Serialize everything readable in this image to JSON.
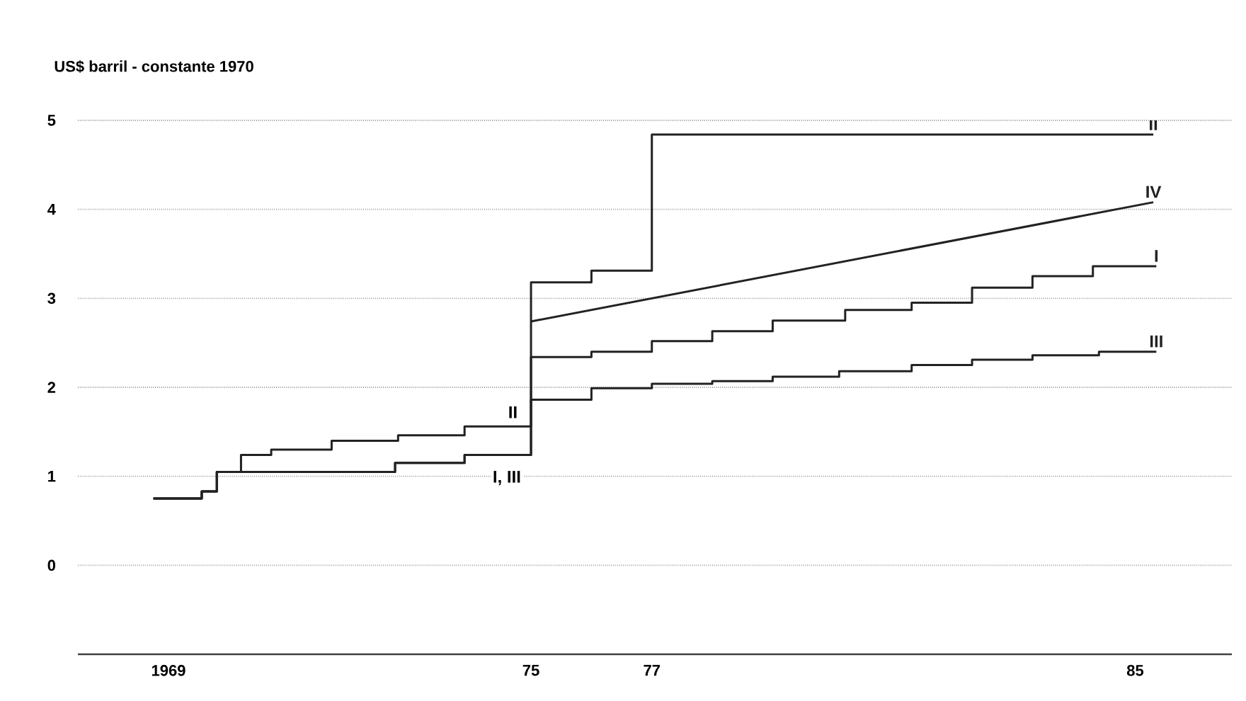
{
  "chart_data": {
    "type": "step",
    "ylabel": "US$ barril - constante 1970",
    "xlim": [
      1967.5,
      1986.6
    ],
    "ylim": [
      -1,
      5
    ],
    "xticks": [
      1969,
      {
        "value": 1975,
        "label": "75"
      },
      {
        "value": 1977,
        "label": "77"
      },
      {
        "value": 1985,
        "label": "85"
      }
    ],
    "yticks": [
      0,
      1,
      2,
      3,
      4,
      5
    ],
    "grid": "y",
    "legend": false,
    "marker": "none",
    "line_style": "solid",
    "series": [
      {
        "name": "II",
        "color": "#222222",
        "x": [
          1968.75,
          1969.55,
          1969.8,
          1970.2,
          1970.7,
          1971.7,
          1972.8,
          1973.9,
          1975,
          1976,
          1977,
          1985.3
        ],
        "values": [
          0.75,
          0.83,
          1.05,
          1.24,
          1.3,
          1.4,
          1.46,
          1.56,
          3.18,
          3.31,
          4.84,
          4.84
        ]
      },
      {
        "name": "IV",
        "type": "line",
        "color": "#222222",
        "x": [
          1975,
          1985.3
        ],
        "values": [
          2.74,
          4.08
        ]
      },
      {
        "name": "I",
        "color": "#222222",
        "x": [
          1968.75,
          1969.55,
          1969.8,
          1972.75,
          1973.9,
          1975,
          1976,
          1977,
          1978,
          1979,
          1980.2,
          1981.3,
          1982.3,
          1983.3,
          1984.3,
          1985.35
        ],
        "values": [
          0.75,
          0.83,
          1.05,
          1.15,
          1.24,
          2.34,
          2.4,
          2.52,
          2.63,
          2.75,
          2.87,
          2.95,
          3.12,
          3.25,
          3.36,
          3.36
        ]
      },
      {
        "name": "III",
        "color": "#222222",
        "x": [
          1968.75,
          1969.55,
          1969.8,
          1972.75,
          1973.9,
          1975,
          1976,
          1977,
          1978,
          1979,
          1980.1,
          1981.3,
          1982.3,
          1983.3,
          1984.4,
          1985.35
        ],
        "values": [
          0.75,
          0.83,
          1.05,
          1.15,
          1.24,
          1.86,
          1.99,
          2.04,
          2.07,
          2.12,
          2.18,
          2.25,
          2.31,
          2.36,
          2.4,
          2.4
        ]
      }
    ],
    "annotations": [
      {
        "text": "II",
        "x": 1974.7,
        "y": 1.72
      },
      {
        "text": "I, III",
        "x": 1974.6,
        "y": 0.98
      }
    ]
  }
}
